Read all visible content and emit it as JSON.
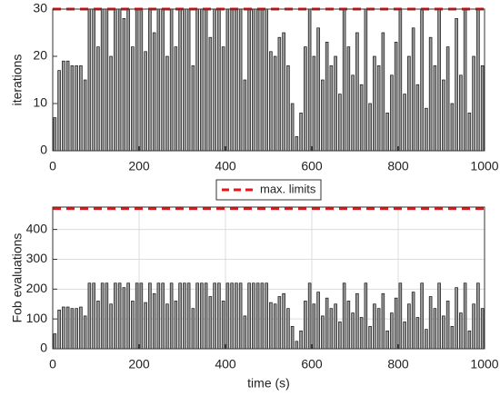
{
  "chart_data": [
    {
      "type": "bar",
      "ylabel": "iterations",
      "xlim": [
        0,
        1000
      ],
      "xticks": [
        0,
        200,
        400,
        600,
        800,
        1000
      ],
      "ylim": [
        0,
        30
      ],
      "yticks": [
        0,
        10,
        20,
        30
      ],
      "grid": false,
      "color": "#9a9a9a",
      "limit": {
        "name": "max. limits",
        "value": 30,
        "color": "#e8141a"
      },
      "x": [
        5,
        15,
        25,
        35,
        45,
        55,
        65,
        75,
        85,
        95,
        105,
        115,
        125,
        135,
        145,
        155,
        165,
        175,
        185,
        195,
        205,
        215,
        225,
        235,
        245,
        255,
        265,
        275,
        285,
        295,
        305,
        315,
        325,
        335,
        345,
        355,
        365,
        375,
        385,
        395,
        405,
        415,
        425,
        435,
        445,
        455,
        465,
        475,
        485,
        495,
        505,
        515,
        525,
        535,
        545,
        555,
        565,
        575,
        585,
        595,
        605,
        615,
        625,
        635,
        645,
        655,
        665,
        675,
        685,
        695,
        705,
        715,
        725,
        735,
        745,
        755,
        765,
        775,
        785,
        795,
        805,
        815,
        825,
        835,
        845,
        855,
        865,
        875,
        885,
        895,
        905,
        915,
        925,
        935,
        945,
        955,
        965,
        975,
        985,
        995
      ],
      "values": [
        7,
        17,
        19,
        19,
        18,
        18,
        18,
        15,
        30,
        30,
        22,
        30,
        30,
        20,
        30,
        30,
        28,
        30,
        22,
        30,
        30,
        21,
        30,
        25,
        30,
        30,
        20,
        30,
        22,
        30,
        30,
        30,
        18,
        30,
        30,
        30,
        24,
        30,
        30,
        22,
        30,
        30,
        30,
        30,
        15,
        30,
        30,
        30,
        30,
        30,
        21,
        20,
        24,
        25,
        18,
        10,
        3,
        8,
        22,
        30,
        20,
        26,
        15,
        23,
        18,
        20,
        12,
        30,
        22,
        16,
        25,
        14,
        30,
        10,
        20,
        18,
        25,
        8,
        16,
        23,
        30,
        12,
        20,
        26,
        14,
        30,
        9,
        24,
        18,
        30,
        15,
        22,
        10,
        28,
        16,
        30,
        8,
        20,
        30,
        18
      ]
    },
    {
      "type": "bar",
      "ylabel": "Fob evaluations",
      "xlabel": "time (s)",
      "xlim": [
        0,
        1000
      ],
      "xticks": [
        0,
        200,
        400,
        600,
        800,
        1000
      ],
      "ylim": [
        0,
        475
      ],
      "yticks": [
        0,
        100,
        200,
        300,
        400
      ],
      "grid": true,
      "color": "#9a9a9a",
      "limit": {
        "value": 470,
        "color": "#e8141a"
      },
      "x": [
        5,
        15,
        25,
        35,
        45,
        55,
        65,
        75,
        85,
        95,
        105,
        115,
        125,
        135,
        145,
        155,
        165,
        175,
        185,
        195,
        205,
        215,
        225,
        235,
        245,
        255,
        265,
        275,
        285,
        295,
        305,
        315,
        325,
        335,
        345,
        355,
        365,
        375,
        385,
        395,
        405,
        415,
        425,
        435,
        445,
        455,
        465,
        475,
        485,
        495,
        505,
        515,
        525,
        535,
        545,
        555,
        565,
        575,
        585,
        595,
        605,
        615,
        625,
        635,
        645,
        655,
        665,
        675,
        685,
        695,
        705,
        715,
        725,
        735,
        745,
        755,
        765,
        775,
        785,
        795,
        805,
        815,
        825,
        835,
        845,
        855,
        865,
        875,
        885,
        895,
        905,
        915,
        925,
        935,
        945,
        955,
        965,
        975,
        985,
        995
      ],
      "values": [
        50,
        130,
        140,
        140,
        135,
        135,
        140,
        110,
        220,
        220,
        160,
        220,
        220,
        150,
        220,
        220,
        205,
        220,
        160,
        220,
        220,
        155,
        220,
        185,
        220,
        220,
        150,
        220,
        160,
        220,
        220,
        220,
        135,
        220,
        220,
        220,
        175,
        220,
        220,
        160,
        220,
        220,
        220,
        220,
        110,
        220,
        220,
        220,
        220,
        220,
        155,
        150,
        175,
        185,
        135,
        75,
        25,
        60,
        160,
        220,
        150,
        190,
        110,
        170,
        135,
        150,
        90,
        220,
        160,
        120,
        185,
        105,
        220,
        75,
        150,
        135,
        185,
        60,
        120,
        170,
        220,
        90,
        150,
        190,
        105,
        220,
        65,
        175,
        135,
        220,
        110,
        160,
        75,
        205,
        120,
        220,
        60,
        150,
        220,
        135
      ]
    }
  ]
}
